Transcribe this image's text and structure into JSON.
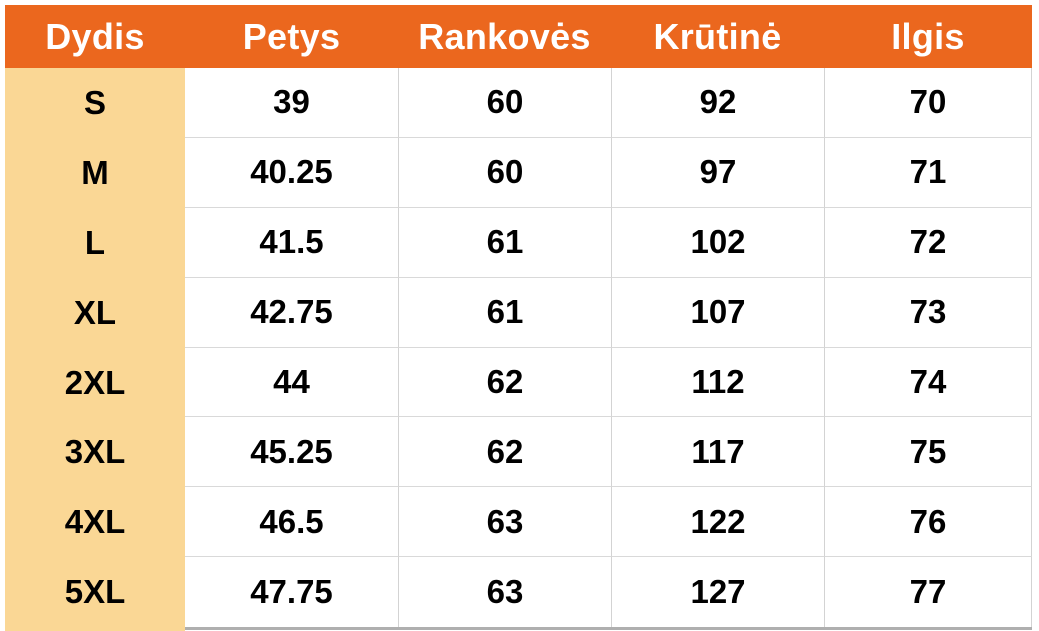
{
  "chart_data": {
    "type": "table",
    "columns": [
      "Dydis",
      "Petys",
      "Rankovės",
      "Krūtinė",
      "Ilgis"
    ],
    "rows": [
      {
        "size": "S",
        "values": [
          39,
          60,
          92,
          70
        ]
      },
      {
        "size": "M",
        "values": [
          40.25,
          60,
          97,
          71
        ]
      },
      {
        "size": "L",
        "values": [
          41.5,
          61,
          102,
          72
        ]
      },
      {
        "size": "XL",
        "values": [
          42.75,
          61,
          107,
          73
        ]
      },
      {
        "size": "2XL",
        "values": [
          44,
          62,
          112,
          74
        ]
      },
      {
        "size": "3XL",
        "values": [
          45.25,
          62,
          117,
          75
        ]
      },
      {
        "size": "4XL",
        "values": [
          46.5,
          63,
          122,
          76
        ]
      },
      {
        "size": "5XL",
        "values": [
          47.75,
          63,
          127,
          77
        ]
      }
    ],
    "layout": {
      "header_position": "top",
      "grid": "light-gray lines between data cells, none inside size column"
    }
  },
  "colors": {
    "header_bg": "#EB671E",
    "size_bg": "#FAD795",
    "row_line": "#D9D9D9",
    "col_line": "#D3D3D3",
    "bottom_bar": "#AFAFAF",
    "header_text": "#FFFFFF",
    "cell_text": "#000000"
  }
}
